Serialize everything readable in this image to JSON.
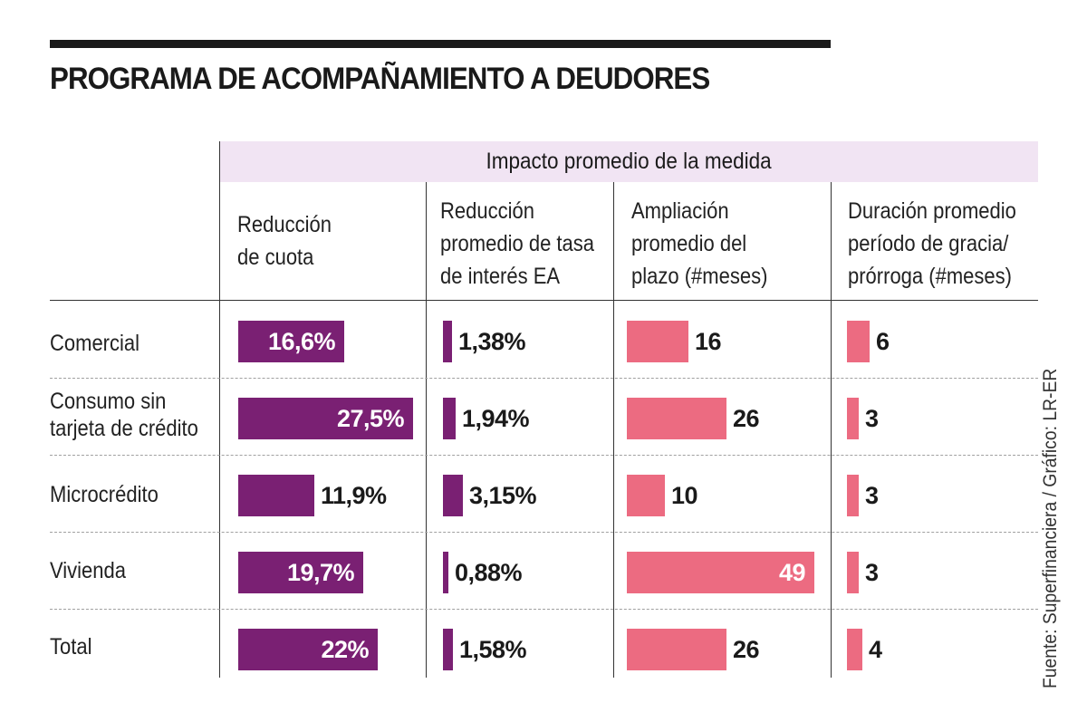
{
  "title": "PROGRAMA DE ACOMPAÑAMIENTO A DEUDORES",
  "source": "Fuente: Superfinanciera / Gráfico: LR-ER",
  "colors": {
    "purple": "#7a2073",
    "pink": "#ec6b81",
    "header_bg": "#f1e4f3"
  },
  "chart_data": {
    "type": "table",
    "group_header": "Impacto promedio de la medida",
    "columns": [
      "Reducción\nde cuota",
      "Reducción\npromedio de tasa\nde interés EA",
      "Ampliación\npromedio del\nplazo (#meses)",
      "Duración promedio\nperíodo de gracia/\nprórroga (#meses)"
    ],
    "categories": [
      "Comercial",
      "Consumo sin\ntarjeta de crédito",
      "Microcrédito",
      "Vivienda",
      "Total"
    ],
    "series": [
      {
        "name": "Reducción de cuota",
        "values": [
          16.6,
          27.5,
          11.9,
          19.7,
          22
        ],
        "labels": [
          "16,6%",
          "27,5%",
          "11,9%",
          "19,7%",
          "22%"
        ],
        "color": "#7a2073",
        "max": 27.5
      },
      {
        "name": "Reducción promedio de tasa de interés EA",
        "values": [
          1.38,
          1.94,
          3.15,
          0.88,
          1.58
        ],
        "labels": [
          "1,38%",
          "1,94%",
          "3,15%",
          "0,88%",
          "1,58%"
        ],
        "color": "#7a2073",
        "max": 3.15
      },
      {
        "name": "Ampliación promedio del plazo (#meses)",
        "values": [
          16,
          26,
          10,
          49,
          26
        ],
        "labels": [
          "16",
          "26",
          "10",
          "49",
          "26"
        ],
        "color": "#ec6b81",
        "max": 49
      },
      {
        "name": "Duración promedio período de gracia/prórroga (#meses)",
        "values": [
          6,
          3,
          3,
          3,
          4
        ],
        "labels": [
          "6",
          "3",
          "3",
          "3",
          "4"
        ],
        "color": "#ec6b81",
        "max": 6
      }
    ]
  }
}
